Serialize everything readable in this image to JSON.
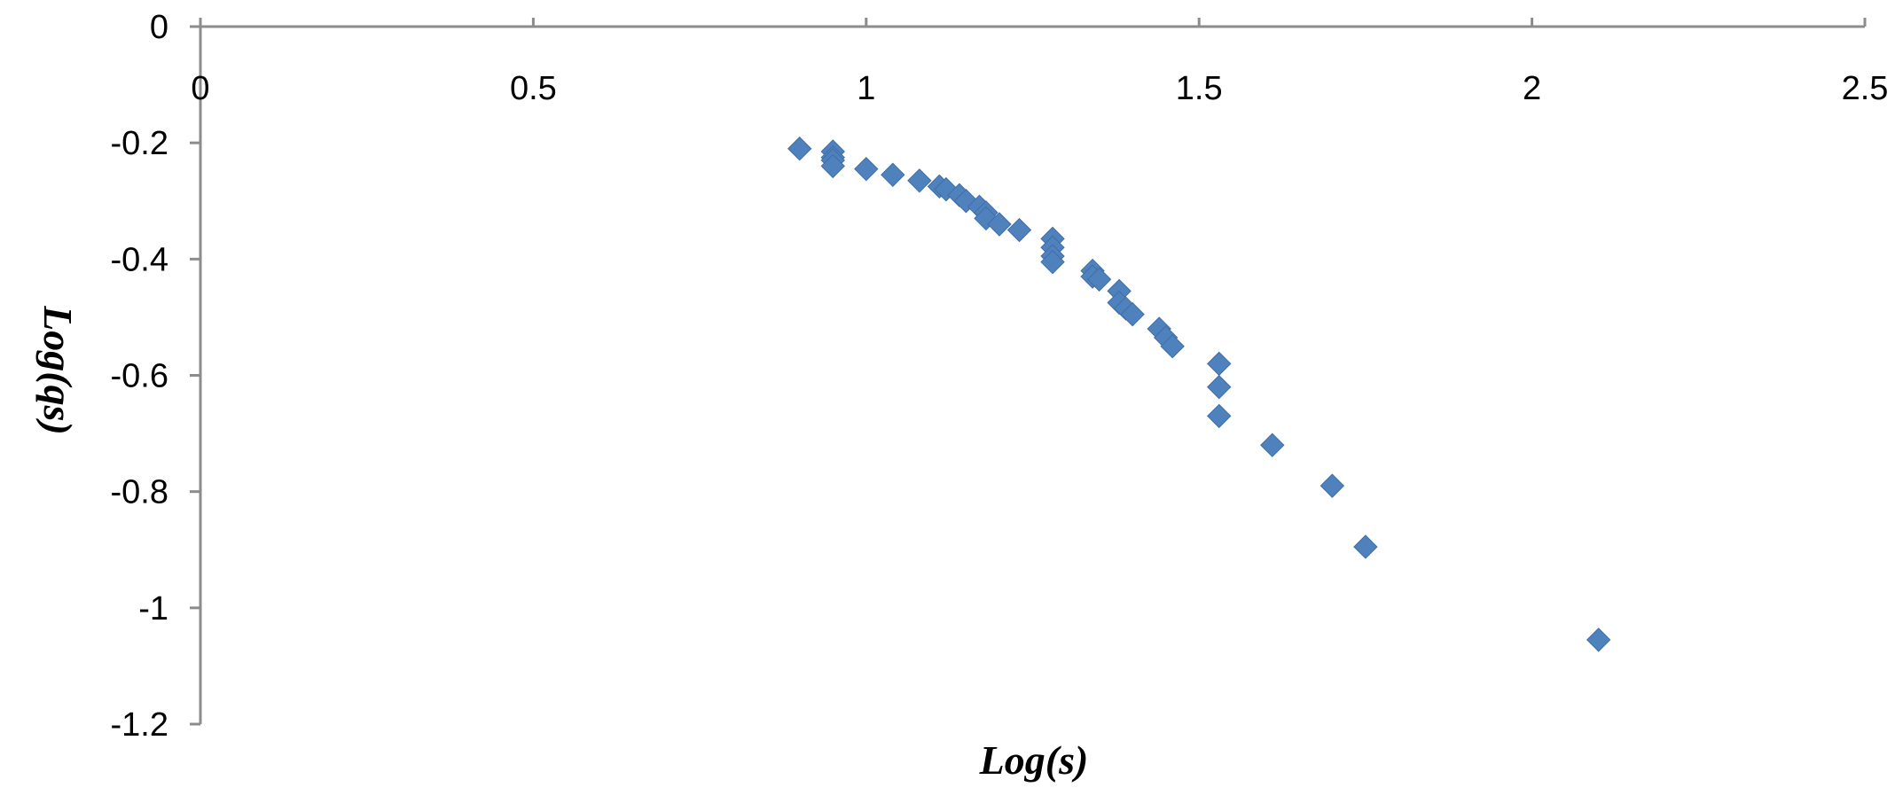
{
  "chart_data": {
    "type": "scatter",
    "title": "",
    "xlabel": "Log(s)",
    "ylabel": "Log(qs)",
    "xlim": [
      0,
      2.5
    ],
    "ylim": [
      -1.2,
      0
    ],
    "xticks": [
      0,
      0.5,
      1,
      1.5,
      2,
      2.5
    ],
    "yticks": [
      0,
      -0.2,
      -0.4,
      -0.6,
      -0.8,
      -1,
      -1.2
    ],
    "xtick_labels": [
      "0",
      "0.5",
      "1",
      "1.5",
      "2",
      "2.5"
    ],
    "ytick_labels": [
      "0",
      "-0.2",
      "-0.4",
      "-0.6",
      "-0.8",
      "-1",
      "-1.2"
    ],
    "grid": false,
    "legend": false,
    "marker": "diamond",
    "color": "#4f81bd",
    "series": [
      {
        "x": [
          0.9,
          0.95,
          0.95,
          0.95,
          0.95,
          1.0,
          1.04,
          1.08,
          1.11,
          1.12,
          1.14,
          1.15,
          1.17,
          1.18,
          1.18,
          1.2,
          1.23,
          1.28,
          1.28,
          1.28,
          1.28,
          1.34,
          1.34,
          1.35,
          1.38,
          1.38,
          1.39,
          1.4,
          1.44,
          1.45,
          1.46,
          1.53,
          1.53,
          1.53,
          1.61,
          1.7,
          1.75,
          2.1
        ],
        "y": [
          -0.21,
          -0.215,
          -0.225,
          -0.23,
          -0.24,
          -0.245,
          -0.255,
          -0.265,
          -0.275,
          -0.28,
          -0.29,
          -0.3,
          -0.31,
          -0.32,
          -0.33,
          -0.34,
          -0.35,
          -0.365,
          -0.38,
          -0.395,
          -0.405,
          -0.42,
          -0.43,
          -0.435,
          -0.455,
          -0.475,
          -0.485,
          -0.495,
          -0.52,
          -0.535,
          -0.55,
          -0.58,
          -0.62,
          -0.67,
          -0.72,
          -0.79,
          -0.895,
          -1.055
        ]
      }
    ]
  }
}
